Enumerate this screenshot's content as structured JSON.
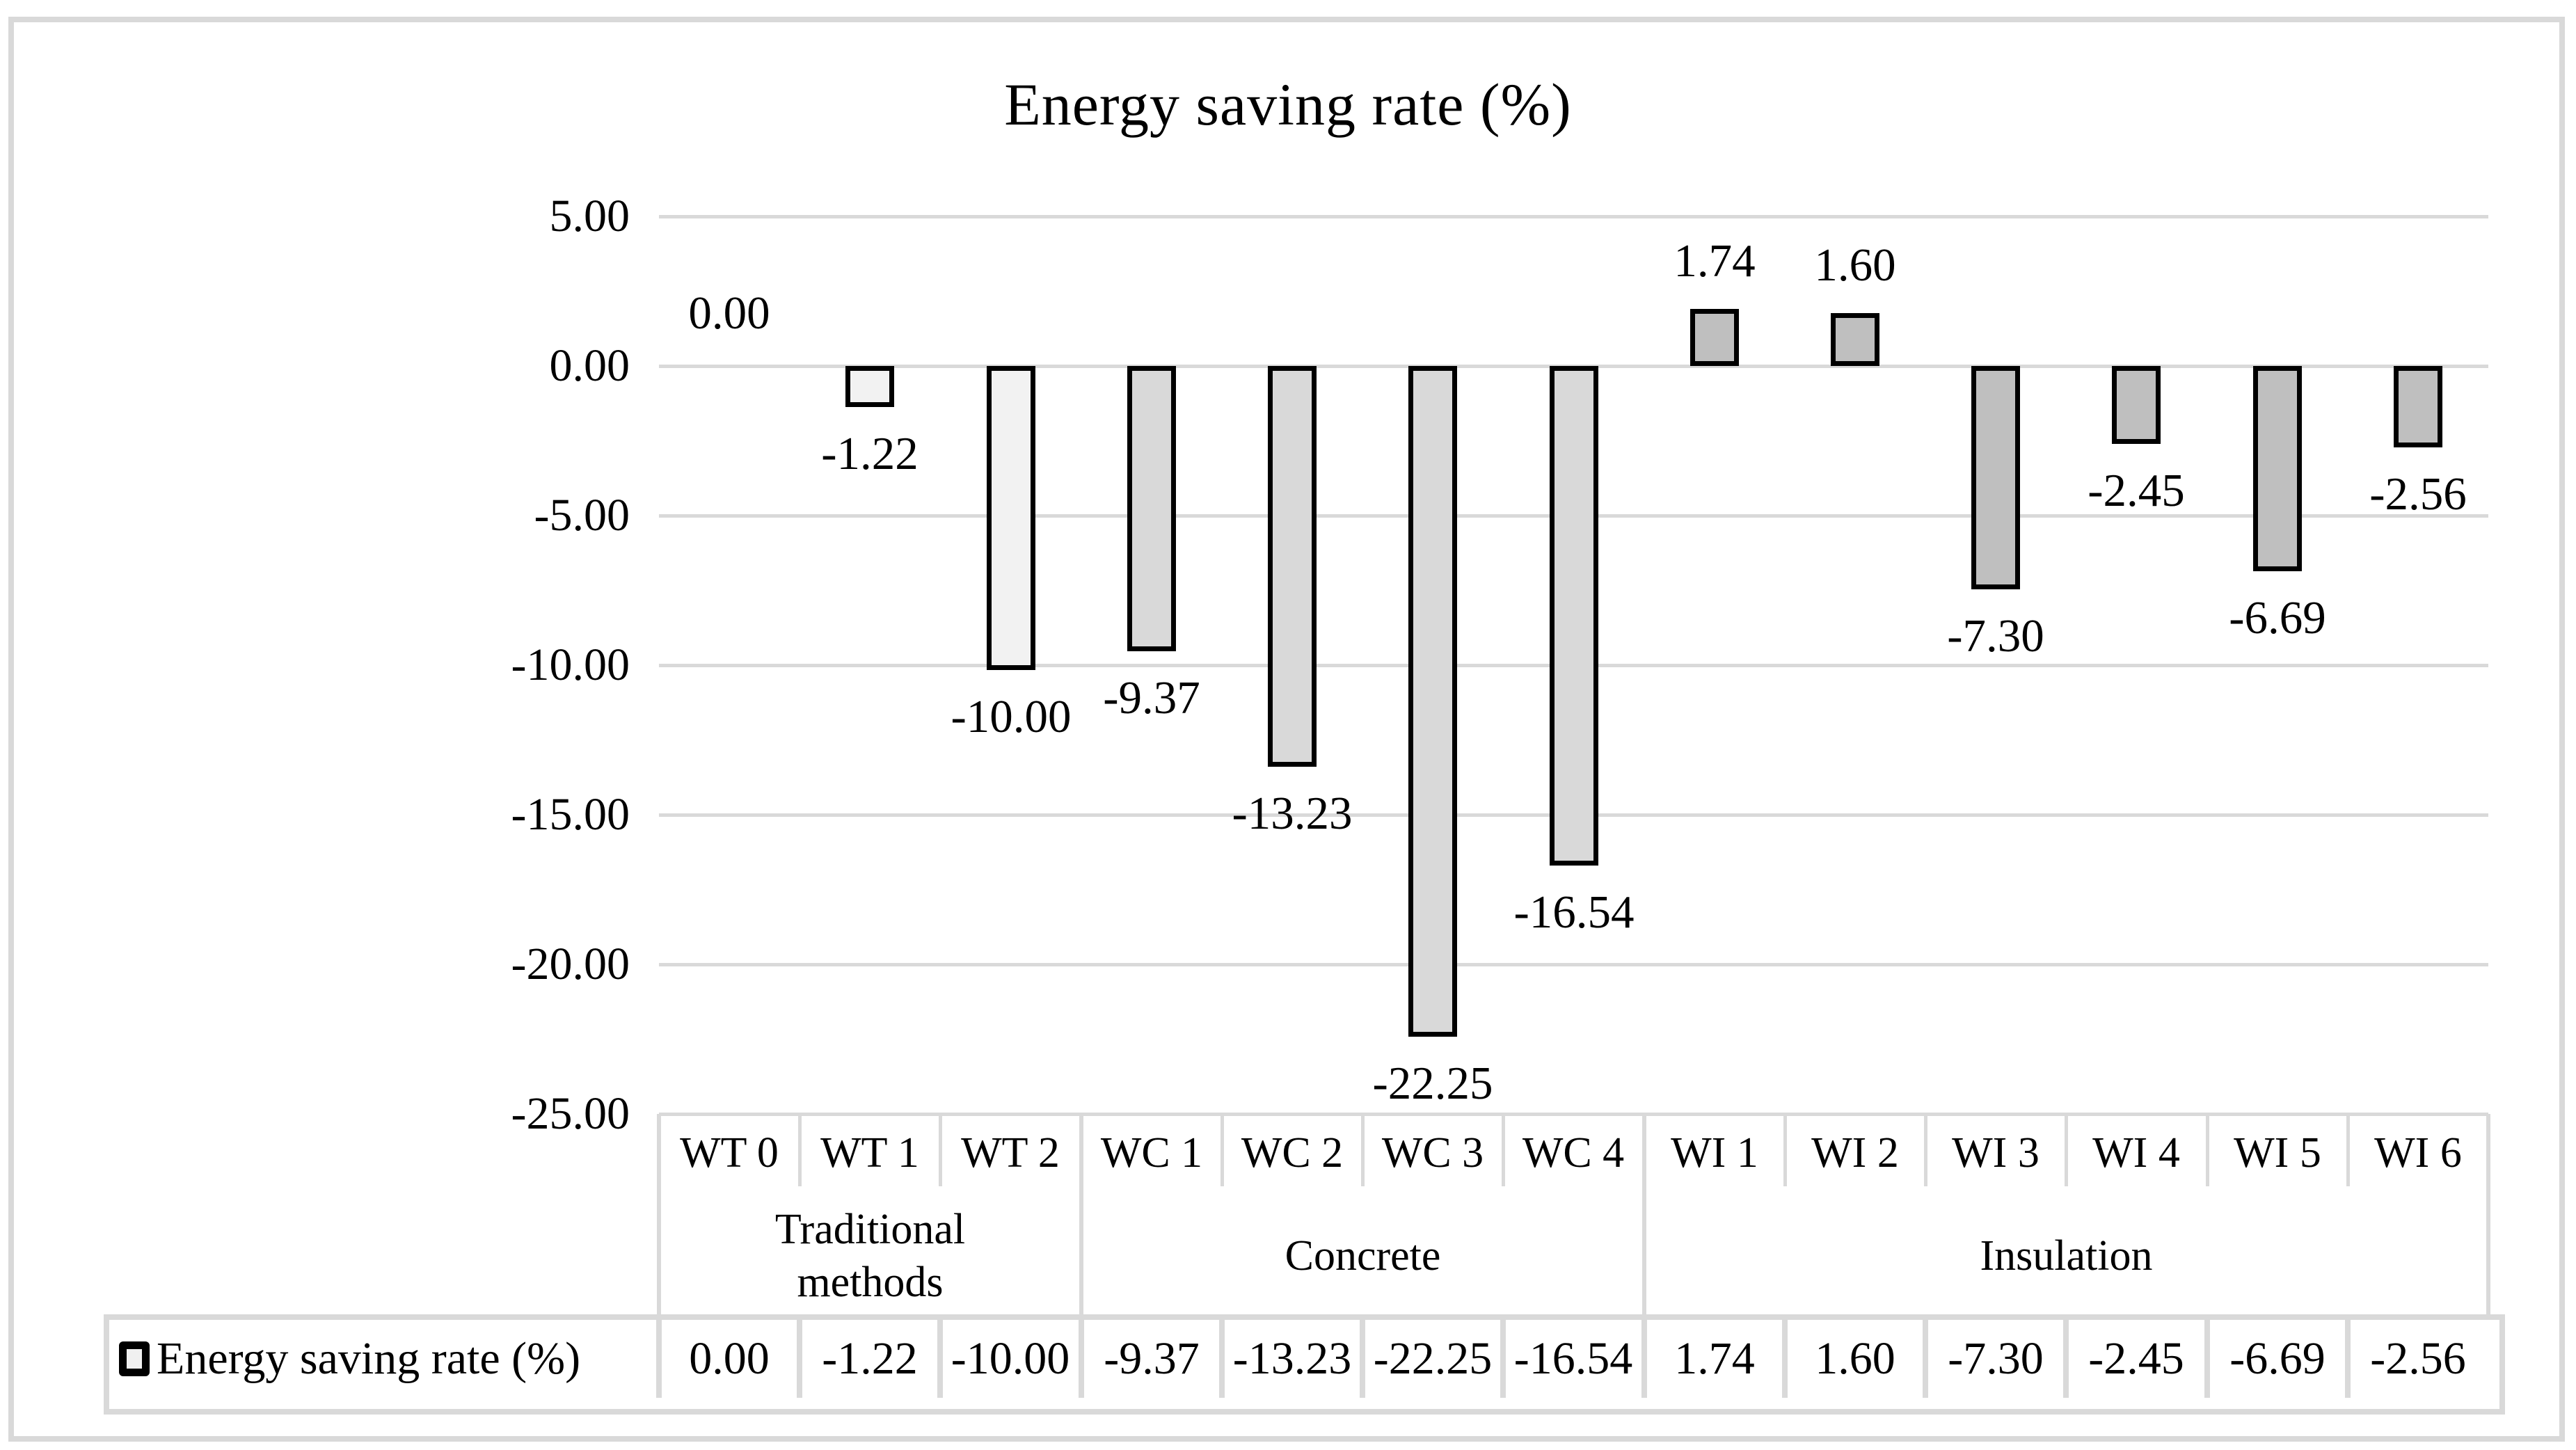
{
  "chart_data": {
    "type": "bar",
    "title": "Energy saving rate (%)",
    "legend": "Energy saving rate (%)",
    "categories": [
      "WT 0",
      "WT 1",
      "WT 2",
      "WC 1",
      "WC 2",
      "WC 3",
      "WC 4",
      "WI 1",
      "WI 2",
      "WI 3",
      "WI 4",
      "WI 5",
      "WI 6"
    ],
    "values": [
      0,
      -1.22,
      -10,
      -9.37,
      -13.23,
      -22.25,
      -16.54,
      1.74,
      1.6,
      -7.3,
      -2.45,
      -6.69,
      -2.56
    ],
    "value_labels": [
      "0.00",
      "-1.22",
      "-10.00",
      "-9.37",
      "-13.23",
      "-22.25",
      "-16.54",
      "1.74",
      "1.60",
      "-7.30",
      "-2.45",
      "-6.69",
      "-2.56"
    ],
    "groups": [
      {
        "label": "Traditional methods",
        "span": 3,
        "color": "#f2f2f2"
      },
      {
        "label": "Concrete",
        "span": 4,
        "color": "#d9d9d9"
      },
      {
        "label": "Insulation",
        "span": 6,
        "color": "#bfbfbf"
      }
    ],
    "y_ticks": [
      {
        "label": "5.00",
        "v": 5
      },
      {
        "label": "0.00",
        "v": 0
      },
      {
        "label": "-5.00",
        "v": -5
      },
      {
        "label": "-10.00",
        "v": -10
      },
      {
        "label": "-15.00",
        "v": -15
      },
      {
        "label": "-20.00",
        "v": -20
      },
      {
        "label": "-25.00",
        "v": -25
      }
    ],
    "ylim": [
      -25,
      5
    ],
    "grid": "horizontal",
    "legend_position": "bottom-table",
    "colors": {
      "outline": "#000000",
      "gridline": "#d9d9d9",
      "table_border": "#d9d9d9",
      "frame": "#d9d9d9",
      "text": "#000000",
      "background": "#ffffff",
      "legend_swatch_fill": "#f0f0f0"
    }
  }
}
